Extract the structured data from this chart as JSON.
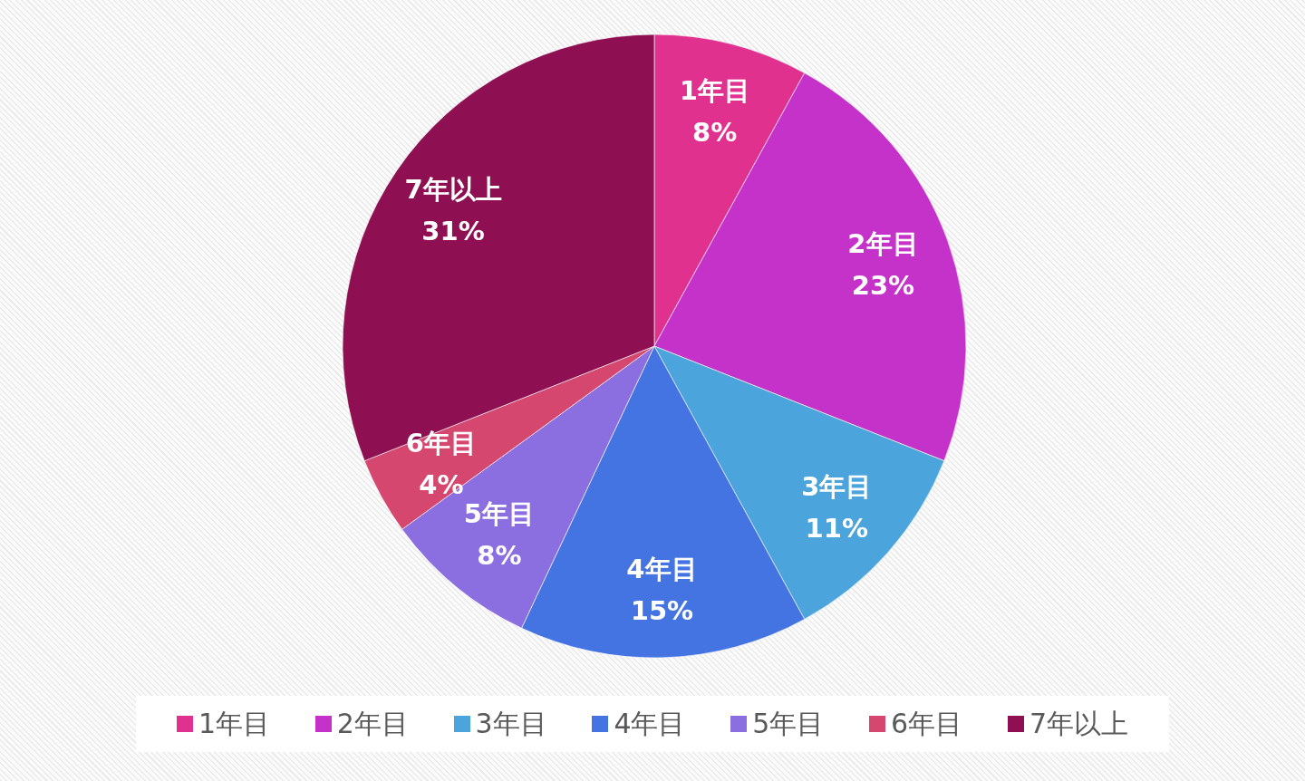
{
  "chart_data": {
    "type": "pie",
    "categories": [
      "1年目",
      "2年目",
      "3年目",
      "4年目",
      "5年目",
      "6年目",
      "7年以上"
    ],
    "values": [
      8,
      23,
      11,
      15,
      8,
      4,
      31
    ],
    "colors": [
      "#e0318e",
      "#c432c9",
      "#4ba4dc",
      "#4474e2",
      "#8b6ee0",
      "#d5476f",
      "#8e1052"
    ],
    "value_labels": [
      "8%",
      "23%",
      "11%",
      "15%",
      "8%",
      "4%",
      "31%"
    ],
    "legend": "bottom"
  }
}
